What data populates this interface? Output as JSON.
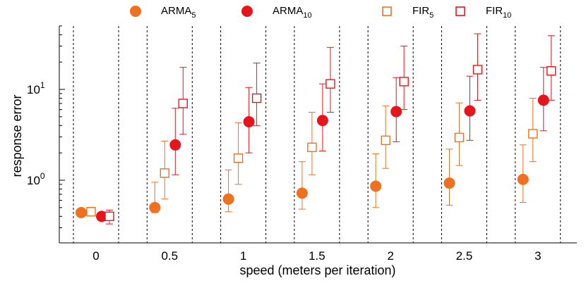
{
  "chart_data": {
    "type": "scatter",
    "xlabel": "speed (meters per iteration)",
    "ylabel": "response error",
    "yscale": "log",
    "ylim": [
      0.26,
      50
    ],
    "categories": [
      "0",
      "0.5",
      "1",
      "1.5",
      "2",
      "2.5",
      "3"
    ],
    "y_ticks": [
      {
        "value": 1,
        "base": "10",
        "exp": "0"
      },
      {
        "value": 10,
        "base": "10",
        "exp": "1"
      }
    ],
    "grid": "dashed vertical separators between speed groups",
    "legend_position": "top",
    "series": [
      {
        "name": "ARMA",
        "sub": "5",
        "marker": "circle-filled",
        "color": "#f07020",
        "points": [
          {
            "mean": 0.44
          },
          {
            "mean": 0.5,
            "lo": 0.44,
            "hi": 0.95
          },
          {
            "mean": 0.62,
            "lo": 0.45,
            "hi": 1.3
          },
          {
            "mean": 0.72,
            "lo": 0.48,
            "hi": 1.6
          },
          {
            "mean": 0.86,
            "lo": 0.5,
            "hi": 1.95
          },
          {
            "mean": 0.93,
            "lo": 0.53,
            "hi": 2.2
          },
          {
            "mean": 1.02,
            "lo": 0.57,
            "hi": 2.45
          }
        ]
      },
      {
        "name": "ARMA",
        "sub": "10",
        "marker": "circle-filled",
        "color": "#e8141c",
        "points": [
          {
            "mean": 0.4,
            "lo": 0.36,
            "hi": 0.44
          },
          {
            "mean": 2.45,
            "lo": 1.15,
            "hi": 6.2
          },
          {
            "mean": 4.4,
            "lo": 2.0,
            "hi": 10.5
          },
          {
            "mean": 4.55,
            "lo": 2.1,
            "hi": 11.5
          },
          {
            "mean": 5.7,
            "lo": 2.65,
            "hi": 13.5
          },
          {
            "mean": 5.8,
            "lo": 2.75,
            "hi": 14.0
          },
          {
            "mean": 7.6,
            "lo": 3.5,
            "hi": 17.5
          }
        ]
      },
      {
        "name": "FIR",
        "sub": "5",
        "marker": "square-open",
        "color": "#f07020",
        "points": [
          {
            "mean": 0.45
          },
          {
            "mean": 1.2,
            "lo": 0.62,
            "hi": 2.7
          },
          {
            "mean": 1.75,
            "lo": 0.9,
            "hi": 4.3
          },
          {
            "mean": 2.3,
            "lo": 1.15,
            "hi": 5.6
          },
          {
            "mean": 2.75,
            "lo": 1.35,
            "hi": 6.6
          },
          {
            "mean": 2.95,
            "lo": 1.45,
            "hi": 7.1
          },
          {
            "mean": 3.25,
            "lo": 1.6,
            "hi": 8.0
          }
        ]
      },
      {
        "name": "FIR",
        "sub": "10",
        "marker": "square-open",
        "color": "#e8141c",
        "points": [
          {
            "mean": 0.4,
            "lo": 0.33,
            "hi": 0.47
          },
          {
            "mean": 7.0,
            "lo": 3.2,
            "hi": 17.5
          },
          {
            "mean": 8.0,
            "lo": 4.0,
            "hi": 19.5
          },
          {
            "mean": 11.5,
            "lo": 5.6,
            "hi": 29.0
          },
          {
            "mean": 12.2,
            "lo": 6.0,
            "hi": 30.0
          },
          {
            "mean": 16.5,
            "lo": 7.6,
            "hi": 41.0
          },
          {
            "mean": 16.0,
            "lo": 7.6,
            "hi": 39.0
          }
        ]
      }
    ]
  }
}
